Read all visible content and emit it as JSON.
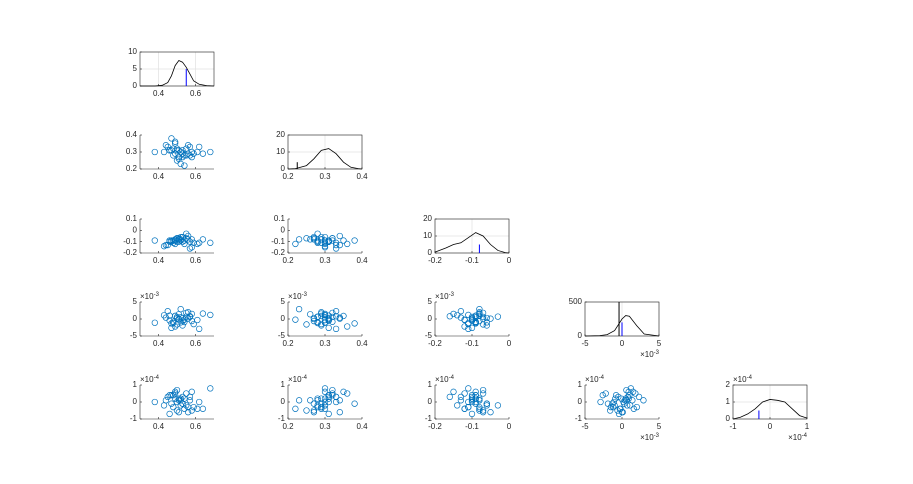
{
  "chart_data": {
    "type": "scatter-matrix",
    "grid": true,
    "scatter_color": "#0072bd",
    "density_color": "#000000",
    "variables": [
      {
        "samples": [
          0.52,
          0.48,
          0.55,
          0.5,
          0.58,
          0.45,
          0.53,
          0.49,
          0.61,
          0.51,
          0.47,
          0.56,
          0.54,
          0.43,
          0.5,
          0.59,
          0.52,
          0.46,
          0.57,
          0.38,
          0.53,
          0.49,
          0.64,
          0.51,
          0.55,
          0.48,
          0.68,
          0.5,
          0.44,
          0.56,
          0.53,
          0.47,
          0.58,
          0.51,
          0.62,
          0.49,
          0.54,
          0.46,
          0.52,
          0.57
        ],
        "xlim": [
          0.3,
          0.7
        ],
        "xticks": [
          0.4,
          0.6
        ],
        "density": {
          "x": [
            0.3,
            0.38,
            0.42,
            0.45,
            0.47,
            0.49,
            0.51,
            0.53,
            0.55,
            0.57,
            0.59,
            0.62,
            0.66,
            0.7
          ],
          "y": [
            0,
            0,
            0.2,
            1,
            3,
            6,
            7.5,
            7,
            5.5,
            3.5,
            1.5,
            0.5,
            0.1,
            0
          ],
          "ylim": [
            0,
            10
          ],
          "yticks": [
            0,
            5,
            10
          ]
        },
        "markers": [
          {
            "x": 0.55,
            "height": 5,
            "color": "#0000ff"
          }
        ]
      },
      {
        "samples": [
          0.3,
          0.28,
          0.32,
          0.31,
          0.27,
          0.33,
          0.29,
          0.35,
          0.3,
          0.26,
          0.31,
          0.34,
          0.28,
          0.3,
          0.32,
          0.29,
          0.23,
          0.31,
          0.33,
          0.3,
          0.27,
          0.36,
          0.29,
          0.31,
          0.28,
          0.32,
          0.3,
          0.25,
          0.34,
          0.29,
          0.31,
          0.38,
          0.3,
          0.27,
          0.33,
          0.29,
          0.22,
          0.31,
          0.3,
          0.28
        ],
        "xlim": [
          0.2,
          0.4
        ],
        "xticks": [
          0.2,
          0.3,
          0.4
        ],
        "ylim": [
          0.2,
          0.4
        ],
        "yticks": [
          0.2,
          0.3,
          0.4
        ],
        "density": {
          "x": [
            0.2,
            0.22,
            0.25,
            0.27,
            0.29,
            0.31,
            0.33,
            0.35,
            0.37,
            0.39,
            0.4
          ],
          "y": [
            0,
            0.2,
            2,
            6,
            11,
            12,
            9,
            4,
            1,
            0.2,
            0
          ],
          "ylim": [
            0,
            20
          ],
          "yticks": [
            0,
            10,
            20
          ]
        },
        "markers": [
          {
            "x": 0.225,
            "height": 4,
            "color": "#000000"
          }
        ]
      },
      {
        "samples": [
          -0.09,
          -0.11,
          -0.07,
          -0.1,
          -0.08,
          -0.13,
          -0.06,
          -0.09,
          -0.12,
          -0.08,
          -0.1,
          -0.05,
          -0.09,
          -0.14,
          -0.07,
          -0.11,
          -0.08,
          -0.1,
          -0.16,
          -0.09,
          -0.06,
          -0.12,
          -0.08,
          -0.1,
          -0.03,
          -0.09,
          -0.11,
          -0.07,
          -0.13,
          -0.08,
          -0.1,
          -0.09,
          -0.15,
          -0.07,
          -0.11,
          -0.08,
          -0.12,
          -0.09,
          -0.06,
          -0.1
        ],
        "xlim": [
          -0.2,
          0
        ],
        "xticks": [
          -0.2,
          -0.1,
          0
        ],
        "ylim": [
          -0.2,
          0.1
        ],
        "yticks": [
          -0.2,
          -0.1,
          0,
          0.1
        ],
        "density": {
          "x": [
            -0.2,
            -0.17,
            -0.15,
            -0.13,
            -0.11,
            -0.09,
            -0.07,
            -0.05,
            -0.03,
            -0.01,
            0
          ],
          "y": [
            0.5,
            3,
            5,
            6,
            9,
            12,
            10,
            5,
            1.5,
            0.2,
            0
          ],
          "ylim": [
            0,
            20
          ],
          "yticks": [
            0,
            10,
            20
          ]
        },
        "markers": [
          {
            "x": -0.08,
            "height": 5,
            "color": "#0000ff"
          }
        ]
      },
      {
        "samples": [
          0.5,
          -1.2,
          1.8,
          0.2,
          -0.6,
          2.3,
          -1.9,
          0.9,
          -0.3,
          1.4,
          -2.6,
          0.1,
          -0.9,
          1.1,
          0.6,
          -1.5,
          2.9,
          -0.4,
          0.8,
          -1.1,
          0.3,
          -2.2,
          1.6,
          -0.1,
          0.7,
          -0.8,
          1.2,
          -1.6,
          0.4,
          2.0,
          -0.5,
          -1.3,
          1.5,
          0.0,
          -2.9,
          0.9,
          -0.2,
          1.0,
          -1.0,
          0.6
        ],
        "xlim": [
          -5,
          5
        ],
        "xticks": [
          -5,
          0,
          5
        ],
        "ylim": [
          -5,
          5
        ],
        "yticks": [
          -5,
          0,
          5
        ],
        "exponent": {
          "base": "×10",
          "power": "-3"
        },
        "density": {
          "x": [
            -5,
            -3,
            -2,
            -1,
            0,
            0.5,
            1,
            2,
            3,
            5
          ],
          "y": [
            0,
            5,
            20,
            80,
            250,
            300,
            290,
            150,
            30,
            0
          ],
          "ylim": [
            0,
            500
          ],
          "yticks": [
            0,
            500
          ]
        },
        "markers": [
          {
            "x": -0.4,
            "height": 500,
            "color": "#000000"
          },
          {
            "x": 0,
            "height": 200,
            "color": "#0000ff"
          }
        ]
      },
      {
        "samples": [
          0.2,
          -0.3,
          0.5,
          0.0,
          -0.5,
          0.3,
          -0.1,
          0.6,
          -0.4,
          0.1,
          0.4,
          -0.6,
          0.2,
          -0.2,
          0.7,
          -0.3,
          0.1,
          -0.7,
          0.3,
          0.0,
          -0.1,
          0.5,
          -0.4,
          0.2,
          -0.2,
          0.4,
          0.8,
          -0.5,
          0.1,
          -0.3,
          0.3,
          -0.1,
          0.6,
          -0.6,
          0.0,
          0.2,
          -0.4,
          0.4,
          -0.2,
          0.1
        ],
        "xlim": [
          -1,
          1
        ],
        "xticks": [
          -1,
          0,
          1
        ],
        "ylim": [
          -1,
          1
        ],
        "yticks": [
          -1,
          0,
          1
        ],
        "exponent": {
          "base": "×10",
          "power": "-4"
        },
        "density": {
          "x": [
            -1,
            -0.8,
            -0.6,
            -0.4,
            -0.2,
            0,
            0.2,
            0.4,
            0.6,
            0.8,
            1
          ],
          "y": [
            0,
            0.1,
            0.3,
            0.6,
            1,
            1.15,
            1.1,
            1,
            0.6,
            0.2,
            0.05
          ],
          "ylim": [
            0,
            2
          ],
          "yticks": [
            0,
            1,
            2
          ]
        },
        "markers": [
          {
            "x": -0.3,
            "height": 0.5,
            "color": "#0000ff"
          }
        ]
      }
    ]
  }
}
